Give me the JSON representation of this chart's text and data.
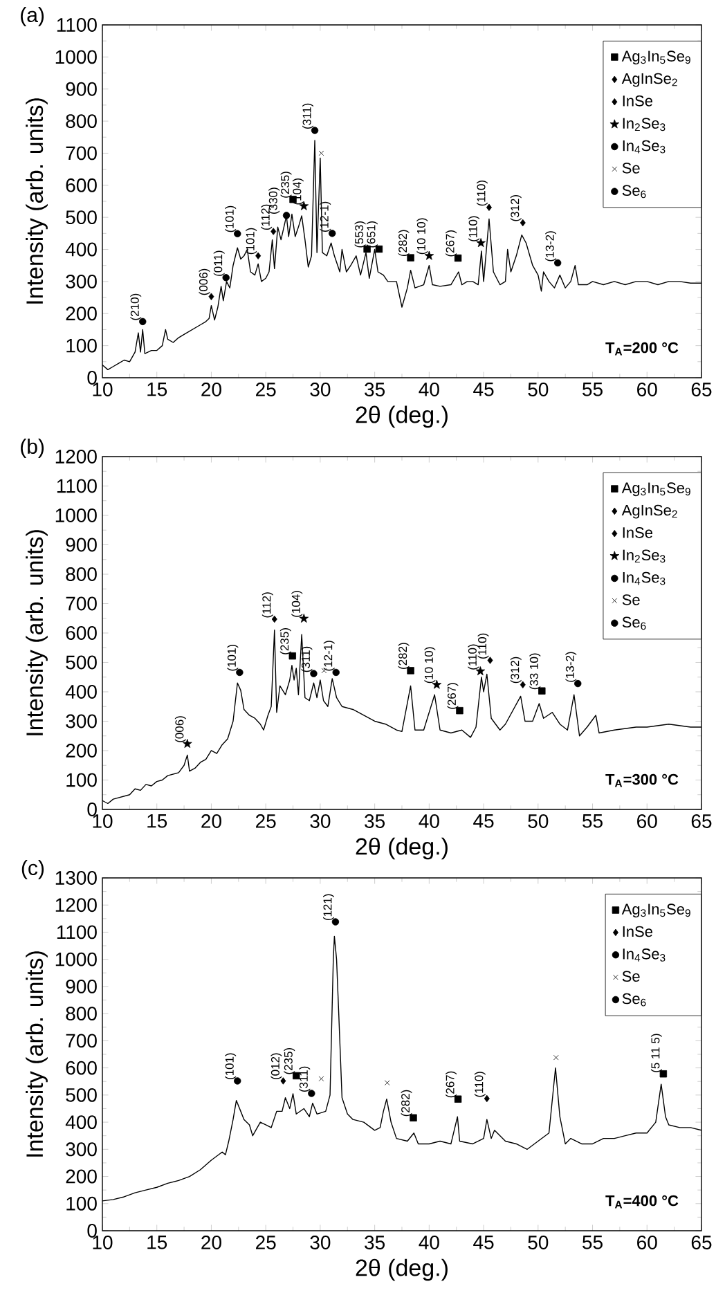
{
  "chart_data": [
    {
      "type": "line",
      "title": "(a)",
      "xlabel": "2θ (deg.)",
      "ylabel": "Intensity (arb. units)",
      "xlim": [
        10,
        65
      ],
      "ylim": [
        0,
        1100
      ],
      "xticks": [
        10,
        15,
        20,
        25,
        30,
        35,
        40,
        45,
        50,
        55,
        60,
        65
      ],
      "yticks": [
        0,
        100,
        200,
        300,
        400,
        500,
        600,
        700,
        800,
        900,
        1000,
        1100
      ],
      "legend": "top right",
      "series": [
        {
          "color": "#000000",
          "x": [
            10,
            10.5,
            11,
            11.5,
            12,
            12.5,
            13,
            13.3,
            13.5,
            13.7,
            13.9,
            14.5,
            15,
            15.5,
            15.8,
            16,
            16.5,
            17,
            17.5,
            18,
            18.5,
            19,
            19.5,
            19.8,
            20,
            20.3,
            20.6,
            20.9,
            21.1,
            21.4,
            21.7,
            22,
            22.4,
            22.7,
            23,
            23.3,
            23.6,
            24,
            24.3,
            24.6,
            25,
            25.3,
            25.6,
            25.8,
            26.1,
            26.4,
            26.9,
            27.1,
            27.4,
            27.7,
            28,
            28.3,
            28.6,
            28.9,
            29.2,
            29.5,
            29.7,
            30,
            30.2,
            30.6,
            31,
            31.3,
            31.8,
            32,
            32.4,
            32.8,
            33.3,
            33.7,
            34.2,
            34.5,
            35,
            35.3,
            35.8,
            36.2,
            36.7,
            37,
            37.5,
            38,
            38.3,
            38.7,
            39.5,
            40,
            40.3,
            41,
            42,
            42.7,
            43,
            43.5,
            44,
            44.5,
            44.8,
            45,
            45.5,
            45.9,
            46.5,
            47,
            47.2,
            47.5,
            48,
            48.5,
            48.9,
            49.5,
            50,
            50.3,
            50.5,
            51,
            51.5,
            52,
            52.5,
            53,
            53.4,
            53.7,
            54.5,
            55,
            56,
            57,
            58,
            59,
            60,
            61,
            62,
            63,
            64,
            65
          ],
          "values": [
            40,
            25,
            35,
            45,
            55,
            50,
            80,
            140,
            80,
            150,
            75,
            85,
            85,
            100,
            150,
            120,
            110,
            125,
            135,
            145,
            155,
            165,
            175,
            185,
            225,
            180,
            220,
            285,
            240,
            300,
            280,
            350,
            405,
            370,
            380,
            400,
            330,
            320,
            355,
            300,
            310,
            330,
            430,
            340,
            470,
            430,
            505,
            440,
            510,
            440,
            470,
            505,
            430,
            345,
            380,
            740,
            390,
            685,
            390,
            380,
            420,
            380,
            330,
            400,
            330,
            350,
            380,
            320,
            390,
            310,
            400,
            330,
            320,
            300,
            300,
            300,
            220,
            280,
            335,
            280,
            290,
            350,
            290,
            285,
            290,
            330,
            290,
            300,
            300,
            290,
            395,
            300,
            495,
            330,
            290,
            300,
            400,
            330,
            380,
            445,
            420,
            350,
            320,
            270,
            330,
            300,
            280,
            320,
            280,
            300,
            350,
            290,
            290,
            300,
            290,
            300,
            290,
            300,
            300,
            290,
            300,
            300,
            295,
            295
          ]
        },
        {
          "type": "scatter",
          "name": "Ag$_{3}$In$_{5}$Se$_{9}$",
          "marker": "square",
          "color": "#000000",
          "x": [
            27.5,
            34.3,
            35.4,
            38.3,
            42.65
          ],
          "values": [
            556,
            401,
            401,
            374,
            373
          ]
        },
        {
          "type": "scatter",
          "name": "AgInSe$_{2}$",
          "marker": "diamond",
          "color": "#000000",
          "x": [
            25.7,
            48.6
          ],
          "values": [
            456,
            483
          ]
        },
        {
          "type": "scatter",
          "name": "InSe",
          "marker": "diamond",
          "color": "#000000",
          "x": [
            20.0,
            24.3,
            45.5
          ],
          "values": [
            253,
            380,
            531
          ]
        },
        {
          "type": "scatter",
          "name": "In$_{2}$Se$_{3}$",
          "marker": "star",
          "color": "#000000",
          "x": [
            28.5,
            40.0,
            44.75
          ],
          "values": [
            535,
            380,
            420
          ]
        },
        {
          "type": "scatter",
          "name": "In$_{4}$Se$_{3}$",
          "marker": "circle",
          "color": "#000000",
          "x": [
            13.7,
            21.35,
            26.9,
            29.5
          ],
          "values": [
            175,
            312,
            506,
            771
          ]
        },
        {
          "type": "scatter",
          "name": "Se",
          "marker": "cross",
          "color": "#000000",
          "x": [
            30.1
          ],
          "values": [
            700
          ]
        },
        {
          "type": "scatter",
          "name": "Se$_{6}$",
          "marker": "circle",
          "color": "#000000",
          "x": [
            22.4,
            31.1,
            51.8
          ],
          "values": [
            449,
            450,
            358
          ]
        }
      ],
      "annotations": [
        {
          "text": "(210)",
          "x": 13.7,
          "y": 175
        },
        {
          "text": "(006)",
          "x": 20.0,
          "y": 253
        },
        {
          "text": "(011)",
          "x": 21.35,
          "y": 312
        },
        {
          "text": "(101)",
          "x": 22.4,
          "y": 449
        },
        {
          "text": "(101)",
          "x": 24.3,
          "y": 380
        },
        {
          "text": "(112)",
          "x": 25.7,
          "y": 456
        },
        {
          "text": "(330)",
          "x": 26.4,
          "y": 506
        },
        {
          "text": "(235)",
          "x": 27.5,
          "y": 556
        },
        {
          "text": "(104)",
          "x": 28.6,
          "y": 535
        },
        {
          "text": "(311)",
          "x": 29.5,
          "y": 771
        },
        {
          "text": "(12-1)",
          "x": 31.1,
          "y": 450
        },
        {
          "text": "(553)",
          "x": 34.3,
          "y": 401
        },
        {
          "text": "(651)",
          "x": 35.4,
          "y": 401
        },
        {
          "text": "(282)",
          "x": 38.3,
          "y": 374
        },
        {
          "text": "(10 10)",
          "x": 40.0,
          "y": 380
        },
        {
          "text": "(267)",
          "x": 42.65,
          "y": 373
        },
        {
          "text": "(110)",
          "x": 44.75,
          "y": 420
        },
        {
          "text": "(110)",
          "x": 45.5,
          "y": 531
        },
        {
          "text": "(312)",
          "x": 48.6,
          "y": 483
        },
        {
          "text": "(13-2)",
          "x": 51.8,
          "y": 358
        },
        "T$_{A}$=200 °C"
      ]
    },
    {
      "type": "line",
      "title": "(b)",
      "xlabel": "2θ (deg.)",
      "ylabel": "Intensity (arb. units)",
      "xlim": [
        10,
        65
      ],
      "ylim": [
        0,
        1200
      ],
      "xticks": [
        10,
        15,
        20,
        25,
        30,
        35,
        40,
        45,
        50,
        55,
        60,
        65
      ],
      "yticks": [
        0,
        100,
        200,
        300,
        400,
        500,
        600,
        700,
        800,
        900,
        1000,
        1100,
        1200
      ],
      "legend": "top right",
      "series": [
        {
          "color": "#000000",
          "x": [
            10,
            10.5,
            11,
            12,
            12.5,
            13,
            13.5,
            14,
            14.5,
            15,
            15.5,
            16,
            16.5,
            17,
            17.5,
            17.8,
            18,
            18.5,
            19,
            19.5,
            20,
            20.5,
            21,
            21.5,
            22,
            22.4,
            22.7,
            23,
            23.5,
            24,
            24.5,
            24.8,
            25.2,
            25.5,
            25.8,
            26,
            26.3,
            26.8,
            27.2,
            27.4,
            27.6,
            27.8,
            28,
            28.3,
            28.6,
            29,
            29.4,
            29.7,
            30,
            30.3,
            30.7,
            31.1,
            31.5,
            32,
            33,
            34,
            35,
            36,
            37,
            37.5,
            38.3,
            38.7,
            39.5,
            40.5,
            41,
            42,
            43,
            43.8,
            44.3,
            44.8,
            45,
            45.3,
            45.7,
            46.5,
            47,
            48.4,
            48.8,
            49.5,
            50.1,
            50.5,
            51.3,
            52,
            52.7,
            53.3,
            53.8,
            54.5,
            55.3,
            55.6,
            57,
            58,
            59,
            60,
            61,
            62,
            63,
            64,
            65
          ],
          "values": [
            30,
            20,
            35,
            45,
            50,
            70,
            65,
            85,
            80,
            95,
            100,
            115,
            120,
            125,
            150,
            185,
            130,
            140,
            160,
            170,
            200,
            190,
            220,
            240,
            300,
            430,
            405,
            340,
            320,
            310,
            290,
            270,
            320,
            350,
            610,
            330,
            420,
            390,
            440,
            490,
            440,
            480,
            390,
            595,
            380,
            370,
            430,
            380,
            440,
            370,
            350,
            445,
            380,
            350,
            340,
            320,
            300,
            290,
            270,
            265,
            420,
            270,
            270,
            390,
            270,
            260,
            270,
            245,
            280,
            450,
            400,
            460,
            310,
            270,
            290,
            385,
            300,
            300,
            360,
            310,
            330,
            290,
            270,
            390,
            250,
            280,
            320,
            260,
            270,
            275,
            280,
            280,
            285,
            290,
            285,
            280,
            280
          ]
        },
        {
          "type": "scatter",
          "name": "Ag$_{3}$In$_{5}$Se$_{9}$",
          "marker": "square",
          "color": "#000000",
          "x": [
            27.45,
            38.3,
            42.8,
            50.35
          ],
          "values": [
            522,
            472,
            336,
            403
          ]
        },
        {
          "type": "scatter",
          "name": "AgInSe$_{2}$",
          "marker": "diamond",
          "color": "#000000",
          "x": [
            25.8,
            48.6
          ],
          "values": [
            647,
            424
          ]
        },
        {
          "type": "scatter",
          "name": "InSe",
          "marker": "diamond",
          "color": "#000000",
          "x": [
            45.6
          ],
          "values": [
            507
          ]
        },
        {
          "type": "scatter",
          "name": "In$_{2}$Se$_{3}$",
          "marker": "star",
          "color": "#000000",
          "x": [
            17.8,
            28.5,
            40.7,
            44.7
          ],
          "values": [
            223,
            649,
            424,
            470
          ]
        },
        {
          "type": "scatter",
          "name": "In$_{4}$Se$_{3}$",
          "marker": "circle",
          "color": "#000000",
          "x": [
            29.4
          ],
          "values": [
            462
          ]
        },
        {
          "type": "scatter",
          "name": "Se",
          "marker": "cross",
          "color": "#000000",
          "x": [
            30.35
          ],
          "values": [
            472
          ]
        },
        {
          "type": "scatter",
          "name": "Se$_{6}$",
          "marker": "circle",
          "color": "#000000",
          "x": [
            22.6,
            31.45,
            53.65
          ],
          "values": [
            466,
            466,
            428
          ]
        }
      ],
      "annotations": [
        {
          "text": "(006)",
          "x": 17.8,
          "y": 223
        },
        {
          "text": "(101)",
          "x": 22.6,
          "y": 466
        },
        {
          "text": "(112)",
          "x": 25.8,
          "y": 647
        },
        {
          "text": "(235)",
          "x": 27.45,
          "y": 522
        },
        {
          "text": "(104)",
          "x": 28.5,
          "y": 649
        },
        {
          "text": "(311)",
          "x": 29.4,
          "y": 462
        },
        {
          "text": "(12-1)",
          "x": 31.45,
          "y": 466
        },
        {
          "text": "(282)",
          "x": 38.3,
          "y": 472
        },
        {
          "text": "(10 10)",
          "x": 40.7,
          "y": 424
        },
        {
          "text": "(267)",
          "x": 42.8,
          "y": 336
        },
        {
          "text": "(110)",
          "x": 44.7,
          "y": 470
        },
        {
          "text": "(110)",
          "x": 45.6,
          "y": 507
        },
        {
          "text": "(312)",
          "x": 48.6,
          "y": 424
        },
        {
          "text": "(33 10)",
          "x": 50.35,
          "y": 403
        },
        {
          "text": "(13-2)",
          "x": 53.65,
          "y": 428
        },
        "T$_{A}$=300 °C"
      ]
    },
    {
      "type": "line",
      "title": "(c)",
      "xlabel": "2θ (deg.)",
      "ylabel": "Intensity (arb. units)",
      "xlim": [
        10,
        65
      ],
      "ylim": [
        0,
        1300
      ],
      "xticks": [
        10,
        15,
        20,
        25,
        30,
        35,
        40,
        45,
        50,
        55,
        60,
        65
      ],
      "yticks": [
        0,
        100,
        200,
        300,
        400,
        500,
        600,
        700,
        800,
        900,
        1000,
        1100,
        1200,
        1300
      ],
      "legend": "top right",
      "series": [
        {
          "color": "#000000",
          "x": [
            10,
            11,
            12,
            13,
            14,
            15,
            16,
            17,
            18,
            19,
            20,
            21,
            21.3,
            21.6,
            22,
            22.3,
            22.7,
            23,
            23.5,
            23.8,
            24.5,
            25,
            25.5,
            26,
            26.5,
            26.8,
            27.2,
            27.5,
            27.8,
            28.5,
            29,
            29.3,
            29.7,
            30.5,
            30.9,
            31.2,
            31.3,
            31.5,
            31.7,
            32,
            32.5,
            33,
            34,
            35,
            35.5,
            35.8,
            36.1,
            36.5,
            37,
            38,
            38.6,
            39,
            40,
            41,
            42,
            42.6,
            42.8,
            44,
            45,
            45.3,
            45.7,
            46,
            47,
            48,
            49,
            50,
            51,
            51.5,
            51.6,
            52,
            52.5,
            53,
            54,
            55,
            56,
            57,
            58,
            59,
            60,
            60.8,
            61.3,
            61.7,
            62,
            63,
            64,
            65
          ],
          "values": [
            110,
            115,
            125,
            140,
            150,
            160,
            175,
            185,
            200,
            225,
            260,
            290,
            280,
            330,
            410,
            480,
            440,
            410,
            390,
            350,
            400,
            390,
            380,
            440,
            440,
            490,
            450,
            505,
            430,
            450,
            420,
            470,
            430,
            440,
            500,
            1000,
            1085,
            1000,
            800,
            490,
            430,
            410,
            400,
            370,
            380,
            440,
            485,
            400,
            340,
            330,
            360,
            320,
            320,
            330,
            320,
            420,
            330,
            320,
            340,
            410,
            340,
            370,
            330,
            320,
            300,
            330,
            360,
            560,
            600,
            420,
            320,
            340,
            320,
            320,
            340,
            340,
            350,
            360,
            360,
            400,
            540,
            420,
            390,
            380,
            380,
            370
          ]
        },
        {
          "type": "scatter",
          "name": "Ag$_{3}$In$_{5}$Se$_{9}$",
          "marker": "square",
          "color": "#000000",
          "x": [
            27.8,
            38.55,
            42.65,
            61.5
          ],
          "values": [
            571,
            416,
            485,
            578
          ]
        },
        {
          "type": "scatter",
          "name": "InSe",
          "marker": "diamond",
          "color": "#000000",
          "x": [
            26.6,
            45.3
          ],
          "values": [
            552,
            487
          ]
        },
        {
          "type": "scatter",
          "name": "In$_{4}$Se$_{3}$",
          "marker": "circle",
          "color": "#000000",
          "x": [
            29.2
          ],
          "values": [
            506
          ]
        },
        {
          "type": "scatter",
          "name": "Se",
          "marker": "cross",
          "color": "#000000",
          "x": [
            30.1,
            36.15,
            51.65
          ],
          "values": [
            560,
            545,
            638
          ]
        },
        {
          "type": "scatter",
          "name": "Se$_{6}$",
          "marker": "circle",
          "color": "#000000",
          "x": [
            22.4,
            31.4
          ],
          "values": [
            552,
            1138
          ]
        }
      ],
      "annotations": [
        {
          "text": "(101)",
          "x": 22.4,
          "y": 552
        },
        {
          "text": "(012)",
          "x": 26.6,
          "y": 552
        },
        {
          "text": "(235)",
          "x": 27.8,
          "y": 571
        },
        {
          "text": "(311)",
          "x": 29.2,
          "y": 506
        },
        {
          "text": "(121)",
          "x": 31.4,
          "y": 1138
        },
        {
          "text": "(282)",
          "x": 38.55,
          "y": 416
        },
        {
          "text": "(267)",
          "x": 42.65,
          "y": 485
        },
        {
          "text": "(110)",
          "x": 45.3,
          "y": 487
        },
        {
          "text": "(5 11 5)",
          "x": 61.5,
          "y": 578
        },
        "T$_{A}$=400 °C"
      ]
    }
  ]
}
